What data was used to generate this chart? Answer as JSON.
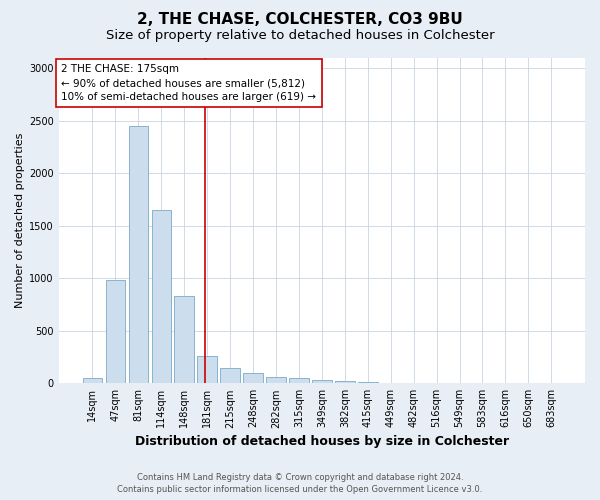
{
  "title": "2, THE CHASE, COLCHESTER, CO3 9BU",
  "subtitle": "Size of property relative to detached houses in Colchester",
  "xlabel": "Distribution of detached houses by size in Colchester",
  "ylabel": "Number of detached properties",
  "footer_line1": "Contains HM Land Registry data © Crown copyright and database right 2024.",
  "footer_line2": "Contains public sector information licensed under the Open Government Licence v3.0.",
  "annotation_line1": "2 THE CHASE: 175sqm",
  "annotation_line2": "← 90% of detached houses are smaller (5,812)",
  "annotation_line3": "10% of semi-detached houses are larger (619) →",
  "bar_labels": [
    "14sqm",
    "47sqm",
    "81sqm",
    "114sqm",
    "148sqm",
    "181sqm",
    "215sqm",
    "248sqm",
    "282sqm",
    "315sqm",
    "349sqm",
    "382sqm",
    "415sqm",
    "449sqm",
    "482sqm",
    "516sqm",
    "549sqm",
    "583sqm",
    "616sqm",
    "650sqm",
    "683sqm"
  ],
  "bar_values": [
    55,
    980,
    2450,
    1650,
    830,
    260,
    145,
    100,
    60,
    50,
    35,
    20,
    10,
    5,
    3,
    2,
    1,
    1,
    0,
    0,
    0
  ],
  "bar_color": "#ccdded",
  "bar_edge_color": "#7aaac8",
  "ylim": [
    0,
    3100
  ],
  "yticks": [
    0,
    500,
    1000,
    1500,
    2000,
    2500,
    3000
  ],
  "bg_color": "#e8eef5",
  "plot_bg_color": "#ffffff",
  "grid_color": "#c8d4e0",
  "vline_color": "#cc0000",
  "vline_x": 4.925,
  "annotation_box_facecolor": "#ffffff",
  "annotation_box_edgecolor": "#cc0000",
  "title_fontsize": 11,
  "subtitle_fontsize": 9.5,
  "xlabel_fontsize": 9,
  "ylabel_fontsize": 8,
  "tick_fontsize": 7,
  "annotation_fontsize": 7.5,
  "footer_fontsize": 6
}
